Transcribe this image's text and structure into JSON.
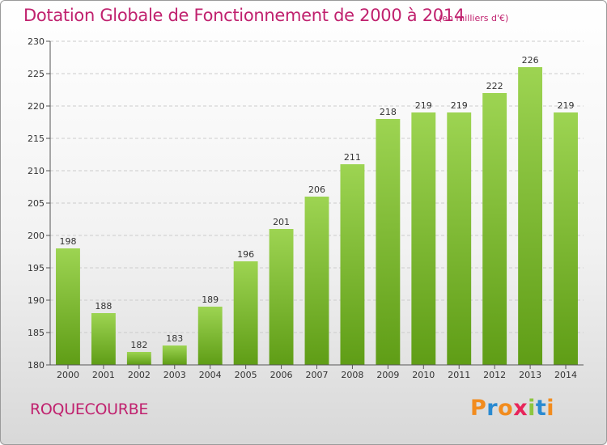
{
  "title": "Dotation Globale de Fonctionnement de 2000 à 2014",
  "subtitle": "(en milliers d'€)",
  "commune": "ROQUECOURBE",
  "brand": {
    "letters": [
      "P",
      "r",
      "o",
      "x",
      "i",
      "t",
      "i"
    ],
    "colors": [
      "#f28c1e",
      "#2a8ad1",
      "#f28c1e",
      "#e8245a",
      "#8cc63f",
      "#2a8ad1",
      "#f28c1e"
    ]
  },
  "colors": {
    "accent": "#c0216e",
    "bar_top": "#9dd452",
    "bar_bottom": "#5f9d16",
    "grid": "#cccccc",
    "axis": "#555555"
  },
  "chart_data": {
    "type": "bar",
    "categories": [
      "2000",
      "2001",
      "2002",
      "2003",
      "2004",
      "2005",
      "2006",
      "2007",
      "2008",
      "2009",
      "2010",
      "2011",
      "2012",
      "2013",
      "2014"
    ],
    "values": [
      198,
      188,
      182,
      183,
      189,
      196,
      201,
      206,
      211,
      218,
      219,
      219,
      222,
      226,
      219
    ],
    "value_labels": [
      "198",
      "188",
      "182",
      "183",
      "189",
      "196",
      "201",
      "206",
      "211",
      "218",
      "219",
      "219",
      "222",
      "226",
      "219"
    ],
    "yticks": [
      180,
      185,
      190,
      195,
      200,
      205,
      210,
      215,
      220,
      225,
      230
    ],
    "ylim": [
      180,
      230
    ],
    "grid": true,
    "legend": "none",
    "xlabel": "",
    "ylabel": ""
  }
}
